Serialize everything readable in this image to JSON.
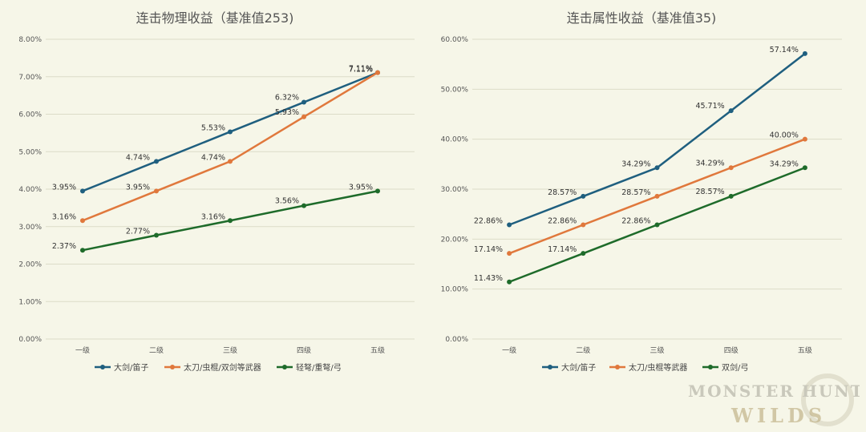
{
  "colors": {
    "blue": "#1f5f7f",
    "orange": "#e0783c",
    "green": "#1e6b2a"
  },
  "logo": {
    "line1": "MONSTER HUNTER",
    "line2": "WILDS"
  },
  "chart_data": [
    {
      "type": "line",
      "title": "连击物理收益（基准值253)",
      "categories": [
        "一级",
        "二级",
        "三级",
        "四级",
        "五级"
      ],
      "ylim": [
        0,
        8
      ],
      "yticks": [
        "0.00%",
        "1.00%",
        "2.00%",
        "3.00%",
        "4.00%",
        "5.00%",
        "6.00%",
        "7.00%",
        "8.00%"
      ],
      "grid": true,
      "legend_position": "bottom",
      "series": [
        {
          "name": "大剑/笛子",
          "color": "#1f5f7f",
          "values": [
            3.95,
            4.74,
            5.53,
            6.32,
            7.11
          ],
          "labels": [
            "3.95%",
            "4.74%",
            "5.53%",
            "6.32%",
            "7.11%"
          ]
        },
        {
          "name": "太刀/虫棍/双剑等武器",
          "color": "#e0783c",
          "values": [
            3.16,
            3.95,
            4.74,
            5.93,
            7.11
          ],
          "labels": [
            "3.16%",
            "3.95%",
            "4.74%",
            "5.93%",
            "7.11%"
          ]
        },
        {
          "name": "轻弩/重弩/弓",
          "color": "#1e6b2a",
          "values": [
            2.37,
            2.77,
            3.16,
            3.56,
            3.95
          ],
          "labels": [
            "2.37%",
            "2.77%",
            "3.16%",
            "3.56%",
            "3.95%"
          ]
        }
      ]
    },
    {
      "type": "line",
      "title": "连击属性收益（基准值35)",
      "categories": [
        "一级",
        "二级",
        "三级",
        "四级",
        "五级"
      ],
      "ylim": [
        0,
        60
      ],
      "yticks": [
        "0.00%",
        "10.00%",
        "20.00%",
        "30.00%",
        "40.00%",
        "50.00%",
        "60.00%"
      ],
      "grid": true,
      "legend_position": "bottom",
      "series": [
        {
          "name": "大剑/笛子",
          "color": "#1f5f7f",
          "values": [
            22.86,
            28.57,
            34.29,
            45.71,
            57.14
          ],
          "labels": [
            "22.86%",
            "28.57%",
            "34.29%",
            "45.71%",
            "57.14%"
          ]
        },
        {
          "name": "太刀/虫棍等武器",
          "color": "#e0783c",
          "values": [
            17.14,
            22.86,
            28.57,
            34.29,
            40.0
          ],
          "labels": [
            "17.14%",
            "22.86%",
            "28.57%",
            "34.29%",
            "40.00%"
          ]
        },
        {
          "name": "双剑/弓",
          "color": "#1e6b2a",
          "values": [
            11.43,
            17.14,
            22.86,
            28.57,
            34.29
          ],
          "labels": [
            "11.43%",
            "17.14%",
            "22.86%",
            "28.57%",
            "34.29%"
          ]
        }
      ]
    }
  ]
}
